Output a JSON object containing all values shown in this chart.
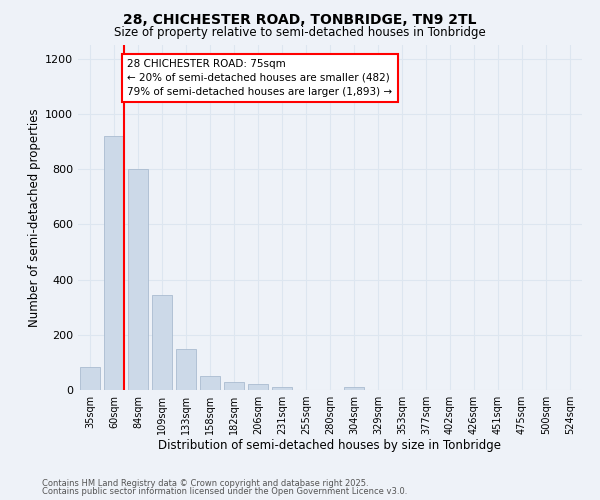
{
  "title1": "28, CHICHESTER ROAD, TONBRIDGE, TN9 2TL",
  "title2": "Size of property relative to semi-detached houses in Tonbridge",
  "xlabel": "Distribution of semi-detached houses by size in Tonbridge",
  "ylabel": "Number of semi-detached properties",
  "bin_labels": [
    "35sqm",
    "60sqm",
    "84sqm",
    "109sqm",
    "133sqm",
    "158sqm",
    "182sqm",
    "206sqm",
    "231sqm",
    "255sqm",
    "280sqm",
    "304sqm",
    "329sqm",
    "353sqm",
    "377sqm",
    "402sqm",
    "426sqm",
    "451sqm",
    "475sqm",
    "500sqm",
    "524sqm"
  ],
  "bin_values": [
    85,
    920,
    800,
    345,
    150,
    52,
    28,
    22,
    10,
    0,
    0,
    12,
    0,
    0,
    0,
    0,
    0,
    0,
    0,
    0,
    0
  ],
  "bar_color": "#ccd9e8",
  "bar_edge_color": "#aabcd0",
  "grid_color": "#dde6f0",
  "bg_color": "#eef2f8",
  "red_line_x": 1.42,
  "annotation_text": "28 CHICHESTER ROAD: 75sqm\n← 20% of semi-detached houses are smaller (482)\n79% of semi-detached houses are larger (1,893) →",
  "footer1": "Contains HM Land Registry data © Crown copyright and database right 2025.",
  "footer2": "Contains public sector information licensed under the Open Government Licence v3.0.",
  "ylim": [
    0,
    1250
  ],
  "yticks": [
    0,
    200,
    400,
    600,
    800,
    1000,
    1200
  ]
}
